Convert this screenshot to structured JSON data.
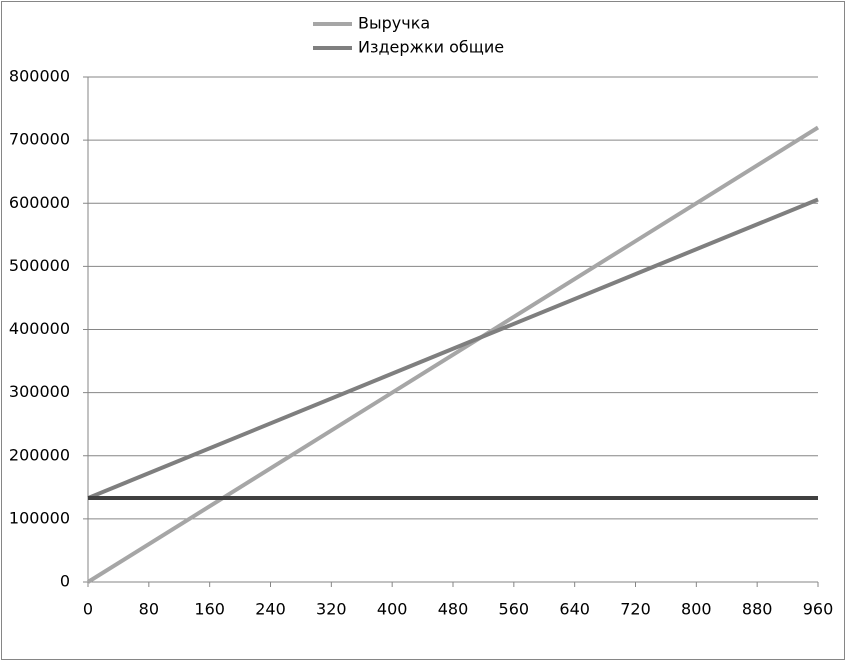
{
  "chart_data": {
    "type": "line",
    "x": [
      0,
      960
    ],
    "series": [
      {
        "name": "Выручка",
        "color": "#a6a6a6",
        "values": [
          0,
          720000
        ]
      },
      {
        "name": "Издержки общие",
        "color": "#7f7f7f",
        "values": [
          133000,
          606000
        ]
      },
      {
        "color": "#404040",
        "values": [
          133000,
          133000
        ]
      }
    ],
    "xlim": [
      0,
      960
    ],
    "xticks": [
      0,
      80,
      160,
      240,
      320,
      400,
      480,
      560,
      640,
      720,
      800,
      880,
      960
    ],
    "ylim": [
      0,
      800000
    ],
    "yticks": [
      0,
      100000,
      200000,
      300000,
      400000,
      500000,
      600000,
      700000,
      800000
    ],
    "grid": true,
    "legend": "top"
  }
}
